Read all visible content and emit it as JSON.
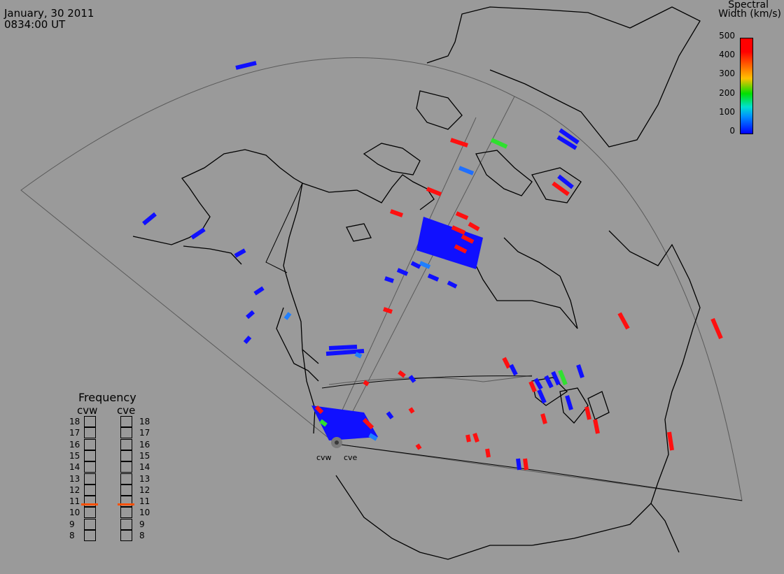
{
  "header": {
    "date": "January, 30 2011",
    "time": "0834:00 UT"
  },
  "colorbar": {
    "title_line1": "Spectral",
    "title_line2": "Width (km/s)",
    "ticks": [
      "500",
      "400",
      "300",
      "200",
      "100",
      "0"
    ],
    "colors": [
      "#0000ff",
      "#0090ff",
      "#00e0d0",
      "#00e000",
      "#ffc000",
      "#ff6000",
      "#ff0000"
    ]
  },
  "frequency_panel": {
    "title": "Frequency",
    "radar_left": "cvw",
    "radar_right": "cve",
    "levels": [
      "18",
      "17",
      "16",
      "15",
      "14",
      "13",
      "12",
      "11",
      "10",
      "9",
      "8"
    ],
    "value_left_mhz": 10.8,
    "value_right_mhz": 10.8,
    "marker_color": "#ff5000"
  },
  "radar_sites": {
    "west": "cvw",
    "east": "cve"
  },
  "colors": {
    "background": "#9a9a9a",
    "coastline": "#000000",
    "fov_outline": "#606060"
  }
}
